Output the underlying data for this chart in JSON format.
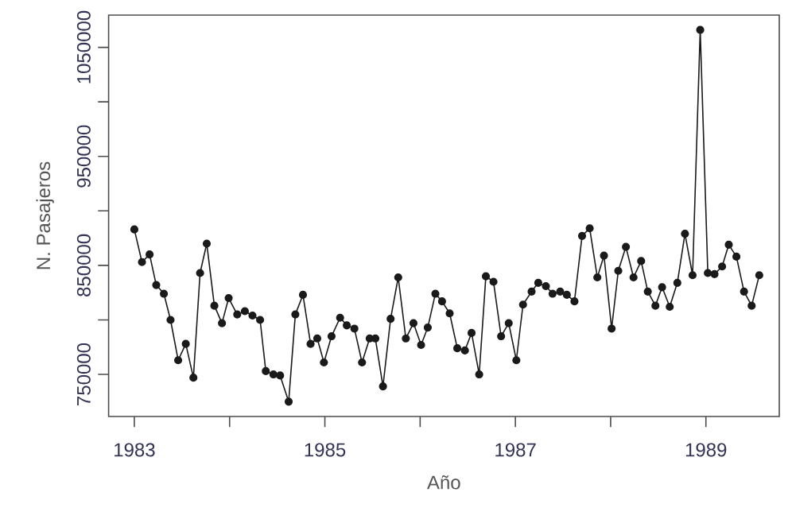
{
  "chart_data": {
    "type": "line",
    "xlabel": "Año",
    "ylabel": "N. Pasajeros",
    "marker": "circle",
    "x": [
      1983.0,
      1983.08,
      1983.16,
      1983.23,
      1983.31,
      1983.38,
      1983.46,
      1983.54,
      1983.62,
      1983.69,
      1983.76,
      1983.84,
      1983.92,
      1983.99,
      1984.08,
      1984.16,
      1984.24,
      1984.32,
      1984.38,
      1984.46,
      1984.53,
      1984.62,
      1984.69,
      1984.77,
      1984.85,
      1984.92,
      1984.99,
      1985.07,
      1985.16,
      1985.23,
      1985.31,
      1985.39,
      1985.47,
      1985.53,
      1985.61,
      1985.69,
      1985.77,
      1985.85,
      1985.93,
      1986.01,
      1986.08,
      1986.16,
      1986.23,
      1986.31,
      1986.39,
      1986.47,
      1986.54,
      1986.62,
      1986.69,
      1986.77,
      1986.85,
      1986.93,
      1987.01,
      1987.08,
      1987.17,
      1987.24,
      1987.32,
      1987.39,
      1987.47,
      1987.54,
      1987.62,
      1987.7,
      1987.78,
      1987.86,
      1987.93,
      1988.01,
      1988.08,
      1988.16,
      1988.24,
      1988.32,
      1988.39,
      1988.47,
      1988.54,
      1988.62,
      1988.7,
      1988.78,
      1988.86,
      1988.94,
      1989.02,
      1989.09,
      1989.17,
      1989.24,
      1989.32,
      1989.4,
      1989.48,
      1989.56
    ],
    "series": [
      {
        "color": "#1a1a1a",
        "values": [
          883000,
          853000,
          860000,
          832000,
          824000,
          800000,
          763000,
          778000,
          747000,
          843000,
          870000,
          813000,
          797000,
          820000,
          805000,
          808000,
          804000,
          800000,
          753000,
          750000,
          749000,
          725000,
          805000,
          823000,
          778000,
          783000,
          761000,
          785000,
          802000,
          795000,
          792000,
          761000,
          783000,
          783000,
          739000,
          801000,
          839000,
          783000,
          797000,
          777000,
          793000,
          824000,
          817000,
          806000,
          774000,
          772000,
          788000,
          750000,
          840000,
          835000,
          785000,
          797000,
          763000,
          814000,
          826000,
          834000,
          831000,
          824000,
          826000,
          823000,
          817000,
          877000,
          884000,
          839000,
          859000,
          792000,
          845000,
          867000,
          839000,
          854000,
          826000,
          813000,
          830000,
          812000,
          834000,
          879000,
          841000,
          1066000,
          843000,
          842000,
          849000,
          869000,
          858000,
          826000,
          813000,
          841000
        ]
      }
    ],
    "xlim": [
      1982.73,
      1989.77
    ],
    "ylim": [
      711400,
      1079600
    ],
    "xticks": [
      1983,
      {
        "value": 1984,
        "label": null
      },
      1985,
      {
        "value": 1986,
        "label": null
      },
      1987,
      {
        "value": 1988,
        "label": null
      },
      1989
    ],
    "yticks": [
      750000,
      {
        "value": 800000,
        "label": null
      },
      850000,
      {
        "value": 900000,
        "label": null
      },
      950000,
      {
        "value": 1000000,
        "label": null
      },
      1050000
    ]
  }
}
